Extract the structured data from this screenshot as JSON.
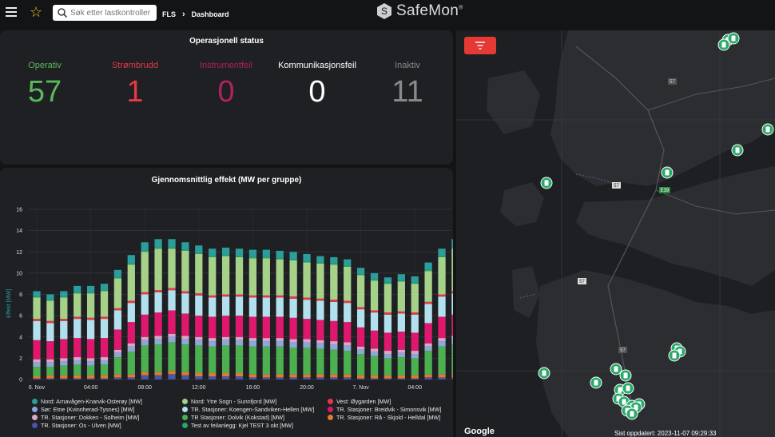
{
  "header": {
    "search_placeholder": "Søk etter lastkontroller",
    "breadcrumb": [
      "FLS",
      "Dashboard"
    ],
    "logo_text": "SafeMon",
    "logo_mark": "®"
  },
  "status": {
    "title": "Operasjonell status",
    "items": [
      {
        "label": "Operativ",
        "value": "57",
        "color": "#5cb85c"
      },
      {
        "label": "Strømbrudd",
        "value": "1",
        "color": "#e53945"
      },
      {
        "label": "Instrumentfeil",
        "value": "0",
        "color": "#b0225f"
      },
      {
        "label": "Kommunikasjonsfeil",
        "value": "0",
        "color": "#ffffff"
      },
      {
        "label": "Inaktiv",
        "value": "11",
        "color": "#8a8a8a"
      }
    ]
  },
  "chart": {
    "title": "Gjennomsnittlig effekt (MW per gruppe)",
    "ylabel": "Effekt [MW]"
  },
  "chart_data": {
    "type": "bar",
    "stacked": true,
    "ylim": [
      0,
      16
    ],
    "yticks": [
      0,
      2,
      4,
      6,
      8,
      10,
      12,
      14,
      16
    ],
    "xtick_labels": [
      "6. Nov",
      "04:00",
      "08:00",
      "12:00",
      "16:00",
      "20:00",
      "7. Nov",
      "04:00"
    ],
    "xtick_positions": [
      0,
      4,
      8,
      12,
      16,
      20,
      24,
      28
    ],
    "categories": [
      "00:00",
      "01:00",
      "02:00",
      "03:00",
      "04:00",
      "05:00",
      "06:00",
      "07:00",
      "08:00",
      "09:00",
      "10:00",
      "11:00",
      "12:00",
      "13:00",
      "14:00",
      "15:00",
      "16:00",
      "17:00",
      "18:00",
      "19:00",
      "20:00",
      "21:00",
      "22:00",
      "23:00",
      "00:00",
      "01:00",
      "02:00",
      "03:00",
      "04:00",
      "05:00",
      "06:00",
      "07:00"
    ],
    "series": [
      {
        "name": "TR. Stasjoner: Os - Ulven [MW]",
        "color": "#4a55a8",
        "values": [
          0.1,
          0.1,
          0.1,
          0.1,
          0.1,
          0.1,
          0.2,
          0.2,
          0.4,
          0.4,
          0.5,
          0.4,
          0.3,
          0.3,
          0.3,
          0.3,
          0.2,
          0.2,
          0.2,
          0.2,
          0.2,
          0.2,
          0.2,
          0.2,
          0.1,
          0.1,
          0.1,
          0.1,
          0.1,
          0.2,
          0.2,
          0.2
        ]
      },
      {
        "name": "TR. Stasjoner: Rå - Skjold - Helldal [MW]",
        "color": "#e07b2f",
        "values": [
          0.2,
          0.3,
          0.3,
          0.3,
          0.3,
          0.3,
          0.3,
          0.3,
          0.3,
          0.3,
          0.3,
          0.3,
          0.3,
          0.3,
          0.3,
          0.3,
          0.3,
          0.3,
          0.3,
          0.3,
          0.3,
          0.3,
          0.3,
          0.3,
          0.3,
          0.3,
          0.3,
          0.3,
          0.3,
          0.3,
          0.3,
          0.3
        ]
      },
      {
        "name": "TR. Stasjoner: Dolvik (Kokstad) [MW]",
        "color": "#4caf50",
        "values": [
          0.9,
          0.8,
          0.9,
          1.0,
          0.9,
          1.0,
          1.6,
          2.1,
          2.5,
          2.6,
          2.7,
          2.6,
          2.6,
          2.5,
          2.6,
          2.6,
          2.6,
          2.6,
          2.6,
          2.5,
          2.5,
          2.4,
          2.3,
          2.2,
          2.0,
          1.8,
          1.6,
          1.7,
          1.6,
          2.2,
          2.6,
          2.8
        ]
      },
      {
        "name": "Sør: Etne (Kvinnherad-Tysnes) [MW]",
        "color": "#8fa6d8",
        "values": [
          0.4,
          0.4,
          0.4,
          0.4,
          0.4,
          0.4,
          0.4,
          0.5,
          0.5,
          0.5,
          0.5,
          0.5,
          0.5,
          0.5,
          0.5,
          0.5,
          0.5,
          0.5,
          0.5,
          0.5,
          0.5,
          0.5,
          0.5,
          0.5,
          0.4,
          0.4,
          0.4,
          0.4,
          0.4,
          0.4,
          0.5,
          0.5
        ]
      },
      {
        "name": "TR. Stasjoner: Dokken - Solheim [MW]",
        "color": "#d5a9c8",
        "values": [
          0.3,
          0.3,
          0.3,
          0.3,
          0.3,
          0.3,
          0.3,
          0.3,
          0.3,
          0.3,
          0.3,
          0.3,
          0.3,
          0.3,
          0.3,
          0.3,
          0.3,
          0.3,
          0.3,
          0.3,
          0.3,
          0.3,
          0.3,
          0.3,
          0.3,
          0.3,
          0.3,
          0.3,
          0.3,
          0.3,
          0.3,
          0.3
        ]
      },
      {
        "name": "TR. Stasjoner: Breidvik - Simonsvik [MW]",
        "color": "#e0186d",
        "values": [
          1.8,
          1.7,
          1.8,
          1.8,
          1.8,
          1.8,
          1.9,
          2.0,
          2.1,
          2.2,
          2.2,
          2.1,
          2.0,
          2.0,
          2.0,
          2.0,
          2.0,
          2.0,
          2.0,
          2.0,
          1.9,
          1.9,
          1.9,
          1.9,
          1.8,
          1.7,
          1.7,
          1.7,
          1.7,
          1.9,
          2.0,
          2.0
        ]
      },
      {
        "name": "TR. Stasjoner: Koengen-Sandviken-Hellen [MW]",
        "color": "#b3e0ef",
        "values": [
          1.8,
          1.7,
          1.7,
          1.8,
          1.8,
          1.8,
          1.8,
          1.8,
          1.9,
          1.9,
          1.9,
          1.9,
          1.9,
          1.8,
          1.8,
          1.8,
          1.8,
          1.8,
          1.8,
          1.8,
          1.8,
          1.8,
          1.8,
          1.8,
          1.7,
          1.7,
          1.7,
          1.7,
          1.7,
          1.8,
          1.9,
          2.0
        ]
      },
      {
        "name": "Vest: Øygarden [MW]",
        "color": "#e53945",
        "values": [
          0.2,
          0.2,
          0.2,
          0.2,
          0.2,
          0.2,
          0.2,
          0.2,
          0.2,
          0.2,
          0.2,
          0.2,
          0.2,
          0.2,
          0.2,
          0.2,
          0.2,
          0.2,
          0.2,
          0.2,
          0.2,
          0.2,
          0.2,
          0.2,
          0.2,
          0.2,
          0.2,
          0.2,
          0.2,
          0.2,
          0.2,
          0.2
        ]
      },
      {
        "name": "Nord: Ytre Sogn - Sunnfjord [MW]",
        "color": "#a6d189",
        "values": [
          2.0,
          1.9,
          2.0,
          2.2,
          2.3,
          2.4,
          2.8,
          3.4,
          3.8,
          3.9,
          3.7,
          3.8,
          3.7,
          3.6,
          3.6,
          3.5,
          3.5,
          3.5,
          3.4,
          3.4,
          3.3,
          3.3,
          3.3,
          3.2,
          3.0,
          2.8,
          2.7,
          2.8,
          2.7,
          2.9,
          3.5,
          4.0
        ]
      },
      {
        "name": "Test av feilanlegg: Kjel TEST 3 okt [MW]",
        "color": "#29a86a",
        "values": [
          0.1,
          0.1,
          0.1,
          0.1,
          0.1,
          0.1,
          0.1,
          0.1,
          0.1,
          0.1,
          0.1,
          0.1,
          0.1,
          0.1,
          0.1,
          0.1,
          0.1,
          0.1,
          0.1,
          0.1,
          0.1,
          0.1,
          0.1,
          0.1,
          0.1,
          0.1,
          0.1,
          0.1,
          0.1,
          0.1,
          0.1,
          0.1
        ]
      },
      {
        "name": "Nord: Arnavågen-Knarvik-Osterøy [MW]",
        "color": "#2a9d9c",
        "values": [
          0.5,
          0.5,
          0.5,
          0.6,
          0.6,
          0.6,
          0.7,
          0.8,
          0.8,
          0.8,
          0.8,
          0.7,
          0.7,
          0.7,
          0.7,
          0.7,
          0.7,
          0.7,
          0.7,
          0.7,
          0.7,
          0.6,
          0.6,
          0.6,
          0.6,
          0.6,
          0.5,
          0.6,
          0.6,
          0.7,
          0.7,
          0.8
        ]
      }
    ],
    "legend_order": [
      "Nord: Arnavågen-Knarvik-Osterøy [MW]",
      "Nord: Ytre Sogn - Sunnfjord [MW]",
      "Vest: Øygarden [MW]",
      "Sør: Etne (Kvinnherad-Tysnes) [MW]",
      "TR. Stasjoner: Koengen-Sandviken-Hellen [MW]",
      "TR. Stasjoner: Breidvik - Simonsvik [MW]",
      "TR. Stasjoner: Dokken - Solheim [MW]",
      "TR Stasjoner: Dolvik (Kokstad) [MW]",
      "TR. Stasjoner: Rå - Skjold - Helldal [MW]",
      "TR. Stasjoner: Os - Ulven [MW]",
      "Test av feilanlegg: Kjel TEST 3 okt [MW]"
    ],
    "legend_placement": "bottom",
    "grid": true
  },
  "map": {
    "google_label": "Google",
    "footer_text": "Sist oppdatert: 2023-11-07 09:29:33",
    "road_labels": [
      "57",
      "57",
      "E39",
      "57",
      "57"
    ],
    "accent_color": "#29a86a"
  }
}
